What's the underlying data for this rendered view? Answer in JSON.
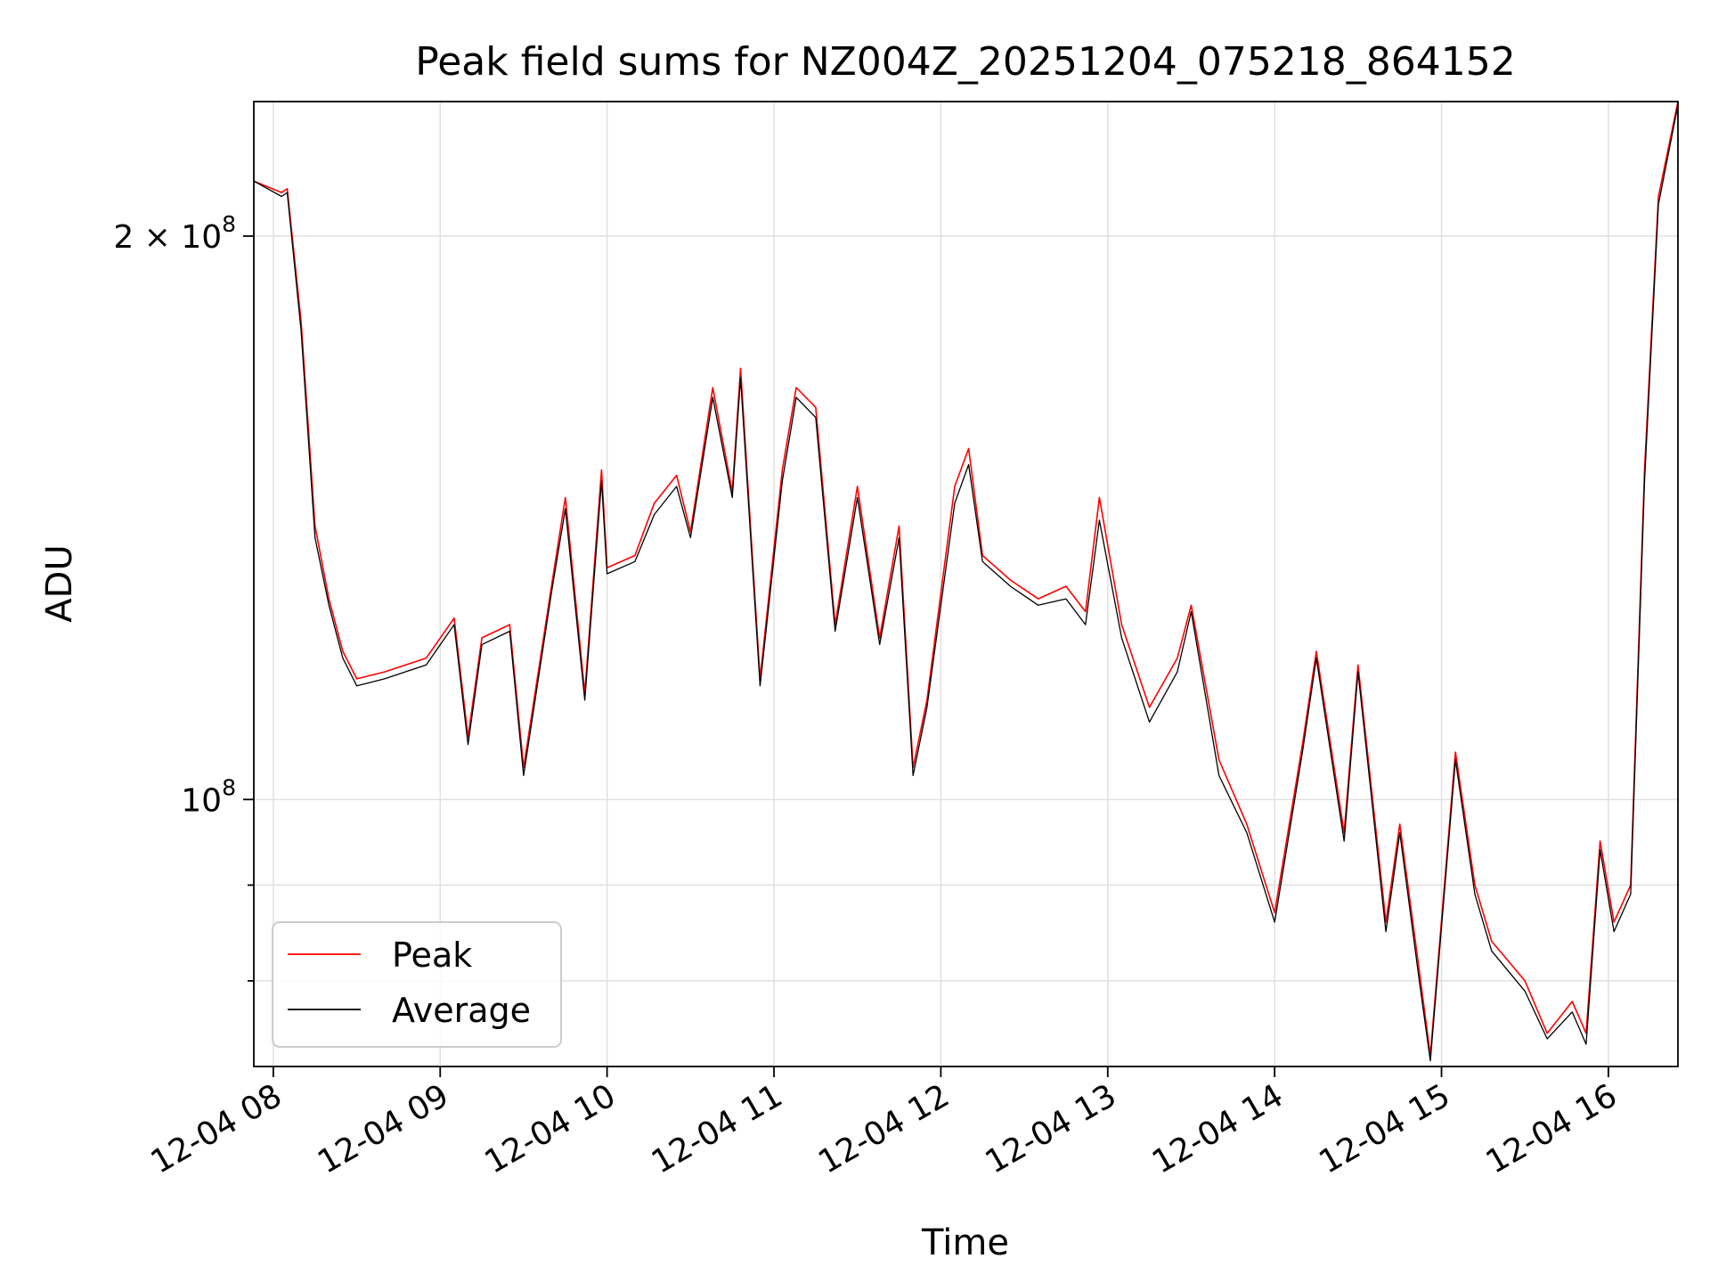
{
  "chart_data": {
    "type": "line",
    "title": "Peak field sums for NZ004Z_20251204_075218_864152",
    "xlabel": "Time",
    "ylabel": "ADU",
    "x_range": [
      "2025-12-04 07:53",
      "2025-12-04 16:25"
    ],
    "y_range": [
      72000000,
      236000000
    ],
    "y_scale": "log",
    "grid": true,
    "legend_position": "lower-left",
    "x_ticks": [
      {
        "t": "2025-12-04 08:00",
        "label": "12-04 08"
      },
      {
        "t": "2025-12-04 09:00",
        "label": "12-04 09"
      },
      {
        "t": "2025-12-04 10:00",
        "label": "12-04 10"
      },
      {
        "t": "2025-12-04 11:00",
        "label": "12-04 11"
      },
      {
        "t": "2025-12-04 12:00",
        "label": "12-04 12"
      },
      {
        "t": "2025-12-04 13:00",
        "label": "12-04 13"
      },
      {
        "t": "2025-12-04 14:00",
        "label": "12-04 14"
      },
      {
        "t": "2025-12-04 15:00",
        "label": "12-04 15"
      },
      {
        "t": "2025-12-04 16:00",
        "label": "12-04 16"
      }
    ],
    "y_major_ticks": [
      {
        "value": 100000000,
        "base": "10",
        "exp": "8",
        "coef": ""
      },
      {
        "value": 200000000,
        "base": "10",
        "exp": "8",
        "coef": "2 × "
      }
    ],
    "y_minor_ticks": [
      80000000,
      90000000
    ],
    "series": [
      {
        "name": "Peak",
        "color": "#ff0000",
        "points": [
          [
            "2025-12-04 07:53",
            214000000
          ],
          [
            "2025-12-04 08:03",
            211000000
          ],
          [
            "2025-12-04 08:05",
            212000000
          ],
          [
            "2025-12-04 08:10",
            180000000
          ],
          [
            "2025-12-04 08:15",
            140000000
          ],
          [
            "2025-12-04 08:20",
            128000000
          ],
          [
            "2025-12-04 08:25",
            120000000
          ],
          [
            "2025-12-04 08:30",
            116000000
          ],
          [
            "2025-12-04 08:40",
            117000000
          ],
          [
            "2025-12-04 08:55",
            119000000
          ],
          [
            "2025-12-04 09:05",
            125000000
          ],
          [
            "2025-12-04 09:10",
            108000000
          ],
          [
            "2025-12-04 09:15",
            122000000
          ],
          [
            "2025-12-04 09:25",
            124000000
          ],
          [
            "2025-12-04 09:30",
            104000000
          ],
          [
            "2025-12-04 09:40",
            130000000
          ],
          [
            "2025-12-04 09:45",
            145000000
          ],
          [
            "2025-12-04 09:52",
            114000000
          ],
          [
            "2025-12-04 09:58",
            150000000
          ],
          [
            "2025-12-04 10:00",
            133000000
          ],
          [
            "2025-12-04 10:10",
            135000000
          ],
          [
            "2025-12-04 10:17",
            144000000
          ],
          [
            "2025-12-04 10:25",
            149000000
          ],
          [
            "2025-12-04 10:30",
            139000000
          ],
          [
            "2025-12-04 10:38",
            166000000
          ],
          [
            "2025-12-04 10:45",
            146000000
          ],
          [
            "2025-12-04 10:48",
            170000000
          ],
          [
            "2025-12-04 10:55",
            116000000
          ],
          [
            "2025-12-04 11:03",
            150000000
          ],
          [
            "2025-12-04 11:08",
            166000000
          ],
          [
            "2025-12-04 11:15",
            162000000
          ],
          [
            "2025-12-04 11:22",
            124000000
          ],
          [
            "2025-12-04 11:30",
            147000000
          ],
          [
            "2025-12-04 11:38",
            122000000
          ],
          [
            "2025-12-04 11:45",
            140000000
          ],
          [
            "2025-12-04 11:50",
            104000000
          ],
          [
            "2025-12-04 11:55",
            113000000
          ],
          [
            "2025-12-04 12:05",
            147000000
          ],
          [
            "2025-12-04 12:10",
            154000000
          ],
          [
            "2025-12-04 12:15",
            135000000
          ],
          [
            "2025-12-04 12:25",
            131000000
          ],
          [
            "2025-12-04 12:35",
            128000000
          ],
          [
            "2025-12-04 12:45",
            130000000
          ],
          [
            "2025-12-04 12:52",
            126000000
          ],
          [
            "2025-12-04 12:57",
            145000000
          ],
          [
            "2025-12-04 13:05",
            124000000
          ],
          [
            "2025-12-04 13:15",
            112000000
          ],
          [
            "2025-12-04 13:25",
            119000000
          ],
          [
            "2025-12-04 13:30",
            127000000
          ],
          [
            "2025-12-04 13:40",
            105000000
          ],
          [
            "2025-12-04 13:50",
            97000000
          ],
          [
            "2025-12-04 14:00",
            87000000
          ],
          [
            "2025-12-04 14:10",
            107000000
          ],
          [
            "2025-12-04 14:15",
            120000000
          ],
          [
            "2025-12-04 14:25",
            96000000
          ],
          [
            "2025-12-04 14:30",
            118000000
          ],
          [
            "2025-12-04 14:40",
            86000000
          ],
          [
            "2025-12-04 14:45",
            97000000
          ],
          [
            "2025-12-04 14:52",
            81000000
          ],
          [
            "2025-12-04 14:56",
            73000000
          ],
          [
            "2025-12-04 15:05",
            106000000
          ],
          [
            "2025-12-04 15:12",
            90000000
          ],
          [
            "2025-12-04 15:18",
            84000000
          ],
          [
            "2025-12-04 15:30",
            80000000
          ],
          [
            "2025-12-04 15:38",
            75000000
          ],
          [
            "2025-12-04 15:47",
            78000000
          ],
          [
            "2025-12-04 15:52",
            75000000
          ],
          [
            "2025-12-04 15:57",
            95000000
          ],
          [
            "2025-12-04 16:02",
            86000000
          ],
          [
            "2025-12-04 16:08",
            90000000
          ],
          [
            "2025-12-04 16:13",
            150000000
          ],
          [
            "2025-12-04 16:18",
            210000000
          ],
          [
            "2025-12-04 16:25",
            236000000
          ]
        ]
      },
      {
        "name": "Average",
        "color": "#000000",
        "points": [
          [
            "2025-12-04 07:53",
            214000000
          ],
          [
            "2025-12-04 08:03",
            210000000
          ],
          [
            "2025-12-04 08:05",
            211000000
          ],
          [
            "2025-12-04 08:10",
            178000000
          ],
          [
            "2025-12-04 08:15",
            138000000
          ],
          [
            "2025-12-04 08:20",
            127000000
          ],
          [
            "2025-12-04 08:25",
            119000000
          ],
          [
            "2025-12-04 08:30",
            115000000
          ],
          [
            "2025-12-04 08:40",
            116000000
          ],
          [
            "2025-12-04 08:55",
            118000000
          ],
          [
            "2025-12-04 09:05",
            124000000
          ],
          [
            "2025-12-04 09:10",
            107000000
          ],
          [
            "2025-12-04 09:15",
            121000000
          ],
          [
            "2025-12-04 09:25",
            123000000
          ],
          [
            "2025-12-04 09:30",
            103000000
          ],
          [
            "2025-12-04 09:40",
            129000000
          ],
          [
            "2025-12-04 09:45",
            143000000
          ],
          [
            "2025-12-04 09:52",
            113000000
          ],
          [
            "2025-12-04 09:58",
            148000000
          ],
          [
            "2025-12-04 10:00",
            132000000
          ],
          [
            "2025-12-04 10:10",
            134000000
          ],
          [
            "2025-12-04 10:17",
            142000000
          ],
          [
            "2025-12-04 10:25",
            147000000
          ],
          [
            "2025-12-04 10:30",
            138000000
          ],
          [
            "2025-12-04 10:38",
            164000000
          ],
          [
            "2025-12-04 10:45",
            145000000
          ],
          [
            "2025-12-04 10:48",
            168000000
          ],
          [
            "2025-12-04 10:55",
            115000000
          ],
          [
            "2025-12-04 11:03",
            148000000
          ],
          [
            "2025-12-04 11:08",
            164000000
          ],
          [
            "2025-12-04 11:15",
            160000000
          ],
          [
            "2025-12-04 11:22",
            123000000
          ],
          [
            "2025-12-04 11:30",
            145000000
          ],
          [
            "2025-12-04 11:38",
            121000000
          ],
          [
            "2025-12-04 11:45",
            138000000
          ],
          [
            "2025-12-04 11:50",
            103000000
          ],
          [
            "2025-12-04 11:55",
            112000000
          ],
          [
            "2025-12-04 12:05",
            144000000
          ],
          [
            "2025-12-04 12:10",
            151000000
          ],
          [
            "2025-12-04 12:15",
            134000000
          ],
          [
            "2025-12-04 12:25",
            130000000
          ],
          [
            "2025-12-04 12:35",
            127000000
          ],
          [
            "2025-12-04 12:45",
            128000000
          ],
          [
            "2025-12-04 12:52",
            124000000
          ],
          [
            "2025-12-04 12:57",
            141000000
          ],
          [
            "2025-12-04 13:05",
            122000000
          ],
          [
            "2025-12-04 13:15",
            110000000
          ],
          [
            "2025-12-04 13:25",
            117000000
          ],
          [
            "2025-12-04 13:30",
            126000000
          ],
          [
            "2025-12-04 13:40",
            103000000
          ],
          [
            "2025-12-04 13:50",
            96000000
          ],
          [
            "2025-12-04 14:00",
            86000000
          ],
          [
            "2025-12-04 14:10",
            106000000
          ],
          [
            "2025-12-04 14:15",
            119000000
          ],
          [
            "2025-12-04 14:25",
            95000000
          ],
          [
            "2025-12-04 14:30",
            117000000
          ],
          [
            "2025-12-04 14:40",
            85000000
          ],
          [
            "2025-12-04 14:45",
            96000000
          ],
          [
            "2025-12-04 14:52",
            80000000
          ],
          [
            "2025-12-04 14:56",
            72500000
          ],
          [
            "2025-12-04 15:05",
            105000000
          ],
          [
            "2025-12-04 15:12",
            89000000
          ],
          [
            "2025-12-04 15:18",
            83000000
          ],
          [
            "2025-12-04 15:30",
            79000000
          ],
          [
            "2025-12-04 15:38",
            74500000
          ],
          [
            "2025-12-04 15:47",
            77000000
          ],
          [
            "2025-12-04 15:52",
            74000000
          ],
          [
            "2025-12-04 15:57",
            94000000
          ],
          [
            "2025-12-04 16:02",
            85000000
          ],
          [
            "2025-12-04 16:08",
            89000000
          ],
          [
            "2025-12-04 16:13",
            148000000
          ],
          [
            "2025-12-04 16:18",
            208000000
          ],
          [
            "2025-12-04 16:25",
            235000000
          ]
        ]
      }
    ]
  }
}
